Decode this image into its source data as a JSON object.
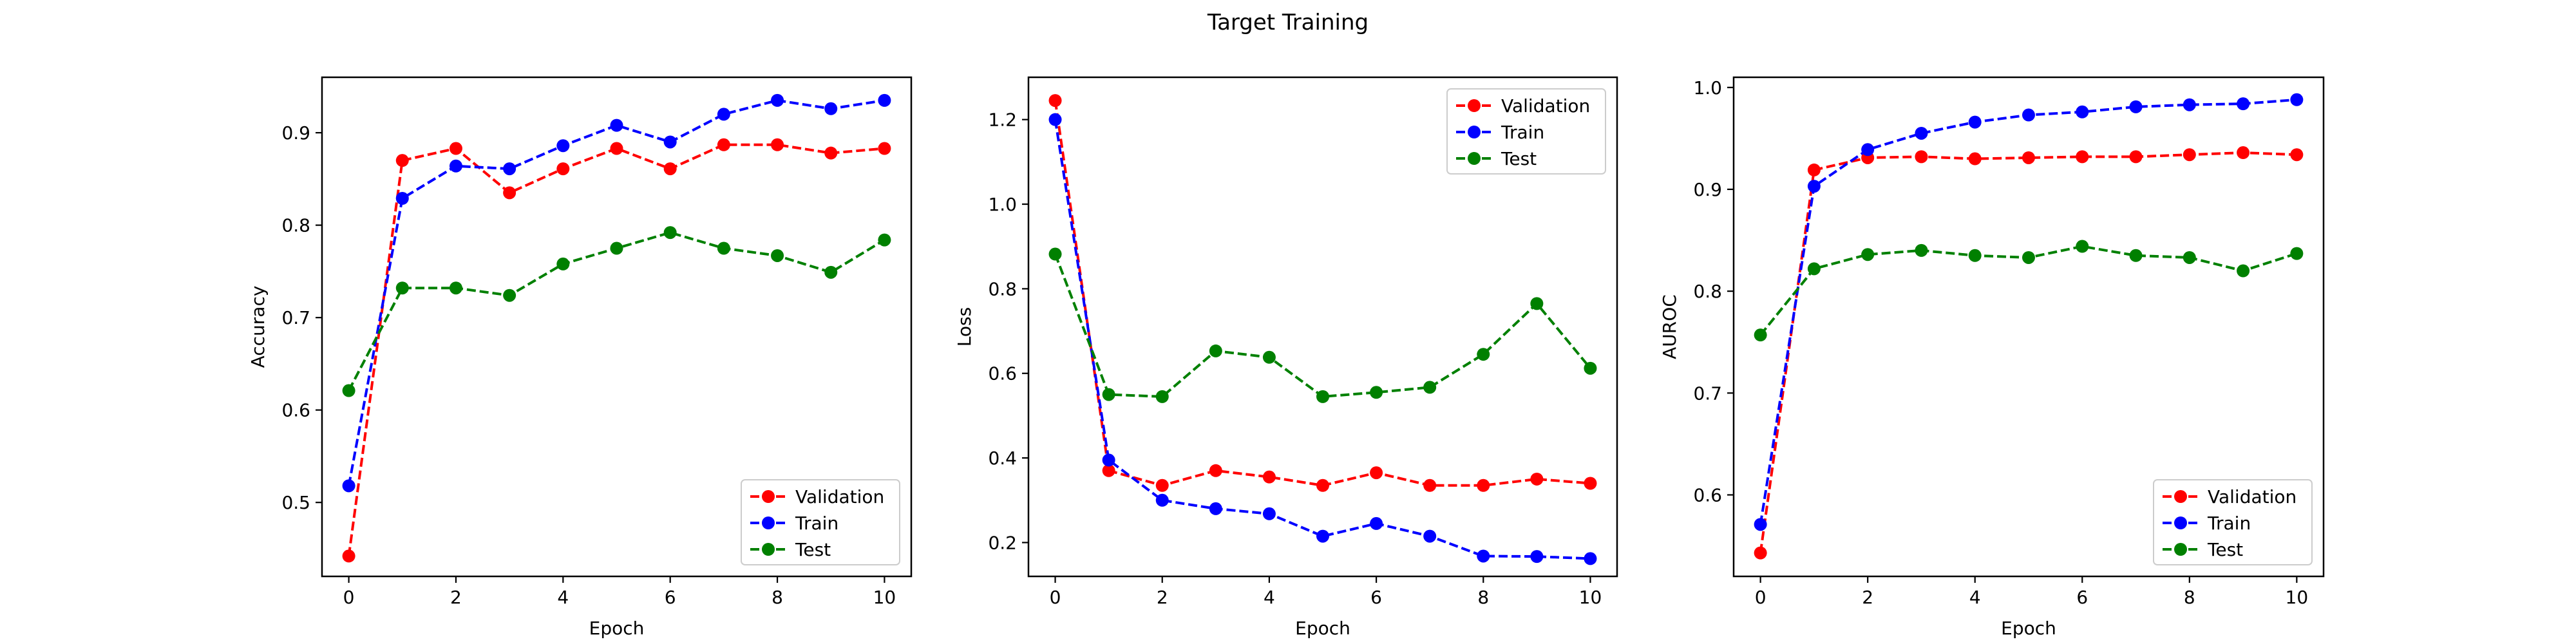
{
  "figure_title": "Target Training",
  "chart_data": [
    {
      "type": "line",
      "title": "",
      "xlabel": "Epoch",
      "ylabel": "Accuracy",
      "xlim": [
        -0.5,
        10.5
      ],
      "ylim": [
        0.42,
        0.96
      ],
      "xticks": [
        0,
        2,
        4,
        6,
        8,
        10
      ],
      "yticks": [
        0.5,
        0.6,
        0.7,
        0.8,
        0.9
      ],
      "ytick_labels": [
        "0.5",
        "0.6",
        "0.7",
        "0.8",
        "0.9"
      ],
      "grid": false,
      "legend": "lower-right",
      "x": [
        0,
        1,
        2,
        3,
        4,
        5,
        6,
        7,
        8,
        9,
        10
      ],
      "series": [
        {
          "name": "Validation",
          "color": "#ff0000",
          "values": [
            0.442,
            0.87,
            0.883,
            0.835,
            0.861,
            0.883,
            0.861,
            0.887,
            0.887,
            0.878,
            0.883
          ]
        },
        {
          "name": "Train",
          "color": "#0000ff",
          "values": [
            0.518,
            0.829,
            0.864,
            0.861,
            0.886,
            0.908,
            0.89,
            0.92,
            0.935,
            0.926,
            0.935
          ]
        },
        {
          "name": "Test",
          "color": "#008000",
          "values": [
            0.621,
            0.732,
            0.732,
            0.724,
            0.758,
            0.775,
            0.792,
            0.775,
            0.767,
            0.749,
            0.784
          ]
        }
      ]
    },
    {
      "type": "line",
      "title": "",
      "xlabel": "Epoch",
      "ylabel": "Loss",
      "xlim": [
        -0.5,
        10.5
      ],
      "ylim": [
        0.12,
        1.3
      ],
      "xticks": [
        0,
        2,
        4,
        6,
        8,
        10
      ],
      "yticks": [
        0.2,
        0.4,
        0.6,
        0.8,
        1.0,
        1.2
      ],
      "ytick_labels": [
        "0.2",
        "0.4",
        "0.6",
        "0.8",
        "1.0",
        "1.2"
      ],
      "grid": false,
      "legend": "upper-right",
      "x": [
        0,
        1,
        2,
        3,
        4,
        5,
        6,
        7,
        8,
        9,
        10
      ],
      "series": [
        {
          "name": "Validation",
          "color": "#ff0000",
          "values": [
            1.245,
            0.37,
            0.335,
            0.37,
            0.355,
            0.335,
            0.365,
            0.335,
            0.335,
            0.35,
            0.34
          ]
        },
        {
          "name": "Train",
          "color": "#0000ff",
          "values": [
            1.2,
            0.395,
            0.3,
            0.28,
            0.268,
            0.215,
            0.245,
            0.215,
            0.168,
            0.167,
            0.162
          ]
        },
        {
          "name": "Test",
          "color": "#008000",
          "values": [
            0.882,
            0.55,
            0.545,
            0.653,
            0.638,
            0.545,
            0.555,
            0.567,
            0.645,
            0.765,
            0.612
          ]
        }
      ]
    },
    {
      "type": "line",
      "title": "",
      "xlabel": "Epoch",
      "ylabel": "AUROC",
      "xlim": [
        -0.5,
        10.5
      ],
      "ylim": [
        0.52,
        1.01
      ],
      "xticks": [
        0,
        2,
        4,
        6,
        8,
        10
      ],
      "yticks": [
        0.6,
        0.7,
        0.8,
        0.9,
        1.0
      ],
      "ytick_labels": [
        "0.6",
        "0.7",
        "0.8",
        "0.9",
        "1.0"
      ],
      "grid": false,
      "legend": "lower-right",
      "x": [
        0,
        1,
        2,
        3,
        4,
        5,
        6,
        7,
        8,
        9,
        10
      ],
      "series": [
        {
          "name": "Validation",
          "color": "#ff0000",
          "values": [
            0.543,
            0.919,
            0.931,
            0.932,
            0.93,
            0.931,
            0.932,
            0.932,
            0.934,
            0.936,
            0.934
          ]
        },
        {
          "name": "Train",
          "color": "#0000ff",
          "values": [
            0.571,
            0.903,
            0.939,
            0.955,
            0.966,
            0.973,
            0.976,
            0.981,
            0.983,
            0.984,
            0.988
          ]
        },
        {
          "name": "Test",
          "color": "#008000",
          "values": [
            0.757,
            0.822,
            0.836,
            0.84,
            0.835,
            0.833,
            0.844,
            0.835,
            0.833,
            0.82,
            0.837
          ]
        }
      ]
    }
  ]
}
